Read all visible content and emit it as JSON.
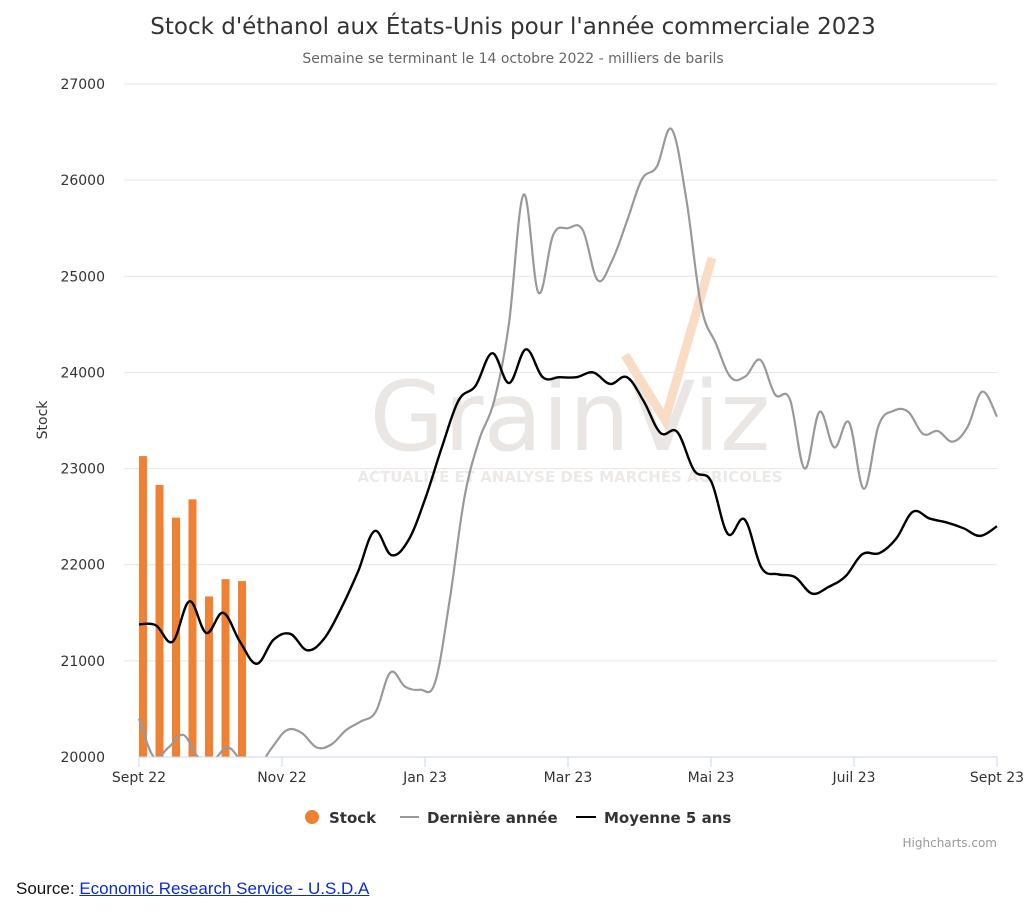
{
  "chart_data": {
    "type": "line",
    "title": "Stock d'éthanol aux États-Unis pour l'année commerciale 2023",
    "subtitle": "Semaine se terminant le 14 octobre 2022 - milliers de barils",
    "ylabel": "Stock",
    "ylim": [
      20000,
      27000
    ],
    "y_ticks": [
      "20000",
      "21000",
      "22000",
      "23000",
      "24000",
      "25000",
      "26000",
      "27000"
    ],
    "x_tick_labels": [
      "Sept 22",
      "Nov 22",
      "Jan 23",
      "Mar 23",
      "Mai 23",
      "Juil 23",
      "Sept 23"
    ],
    "grid": true,
    "legend_position": "bottom-center",
    "series": [
      {
        "name": "Stock",
        "type": "bar",
        "color": "#f08133",
        "values": [
          23130,
          22830,
          22490,
          22680,
          21670,
          21850,
          21830
        ]
      },
      {
        "name": "Dernière année",
        "type": "line",
        "color": "#999999",
        "values": [
          20400,
          20000,
          20100,
          20230,
          20000,
          19970,
          20100,
          19950,
          19900,
          20100,
          20280,
          20250,
          20100,
          20130,
          20280,
          20370,
          20470,
          20880,
          20730,
          20700,
          20770,
          21630,
          22700,
          23300,
          23700,
          24500,
          25850,
          24830,
          25430,
          25500,
          25480,
          24960,
          25170,
          25580,
          26010,
          26140,
          26530,
          25800,
          24690,
          24300,
          23950,
          23960,
          24130,
          23770,
          23720,
          23000,
          23590,
          23220,
          23480,
          22790,
          23450,
          23600,
          23590,
          23360,
          23390,
          23280,
          23430,
          23800,
          23540
        ]
      },
      {
        "name": "Moyenne 5 ans",
        "type": "line",
        "color": "#000000",
        "values": [
          21380,
          21370,
          21200,
          21620,
          21290,
          21500,
          21200,
          20970,
          21220,
          21280,
          21110,
          21230,
          21540,
          21920,
          22350,
          22100,
          22250,
          22680,
          23220,
          23710,
          23860,
          24200,
          23890,
          24240,
          23950,
          23950,
          23950,
          24000,
          23880,
          23950,
          23700,
          23370,
          23380,
          22980,
          22870,
          22320,
          22470,
          21970,
          21900,
          21870,
          21700,
          21770,
          21880,
          22110,
          22120,
          22270,
          22550,
          22480,
          22440,
          22380,
          22300,
          22400
        ]
      }
    ]
  },
  "legend": [
    {
      "label": "Stock",
      "color": "#f08133",
      "symbol": "circle"
    },
    {
      "label": "Dernière année",
      "color": "#999999",
      "symbol": "line"
    },
    {
      "label": "Moyenne 5 ans",
      "color": "#000000",
      "symbol": "line"
    }
  ],
  "watermark": {
    "main": "GrainViz",
    "sub": "ACTUALITÉ ET ANALYSE DES MARCHÉS AGRICOLES"
  },
  "credits": "Highcharts.com",
  "source": {
    "prefix": "Source:",
    "link_text": "Economic Research Service - U.S.D.A"
  }
}
